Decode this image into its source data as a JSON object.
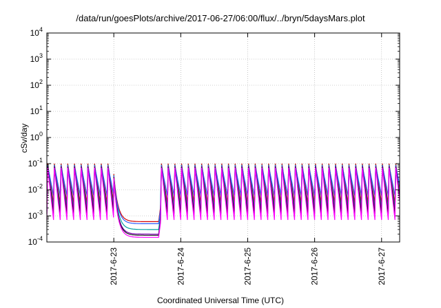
{
  "chart_data": {
    "type": "line",
    "title": "/data/run/goesPlots/archive/2017-06-27/06:00/flux/../bryn/5daysMars.plot",
    "xlabel": "Coordinated Universal Time (UTC)",
    "ylabel": "cSv/day",
    "y_scale": "log",
    "ylim": [
      0.0001,
      10000
    ],
    "y_ticks": [
      {
        "value": 0.0001,
        "base": "10",
        "exp": "-4"
      },
      {
        "value": 0.001,
        "base": "10",
        "exp": "-3"
      },
      {
        "value": 0.01,
        "base": "10",
        "exp": "-2"
      },
      {
        "value": 0.1,
        "base": "10",
        "exp": "-1"
      },
      {
        "value": 1,
        "base": "10",
        "exp": "0"
      },
      {
        "value": 10,
        "base": "10",
        "exp": "1"
      },
      {
        "value": 100,
        "base": "10",
        "exp": "2"
      },
      {
        "value": 1000,
        "base": "10",
        "exp": "3"
      },
      {
        "value": 10000,
        "base": "10",
        "exp": "4"
      }
    ],
    "xlim": [
      -1.0,
      4.27
    ],
    "x_ticks": [
      {
        "value": 0,
        "label": "2017-6-23"
      },
      {
        "value": 1,
        "label": "2017-6-24"
      },
      {
        "value": 2,
        "label": "2017-6-25"
      },
      {
        "value": 3,
        "label": "2017-6-26"
      },
      {
        "value": 4,
        "label": "2017-6-27"
      }
    ],
    "grid": true,
    "legend": "none",
    "sawtooth_period_days": 0.1,
    "dip_start_day": 0.0,
    "dip_end_day": 0.7,
    "series": [
      {
        "color": "#d40000",
        "peak": 0.1,
        "trough": 0.003,
        "dip_floor": 0.0006
      },
      {
        "color": "#00a0a0",
        "peak": 0.09,
        "trough": 0.002,
        "dip_floor": 0.0003
      },
      {
        "color": "#2f5fff",
        "peak": 0.085,
        "trough": 0.006,
        "dip_floor": 0.0005
      },
      {
        "color": "#7a00b0",
        "peak": 0.08,
        "trough": 0.0015,
        "dip_floor": 0.0002
      },
      {
        "color": "#1a1a1a",
        "peak": 0.075,
        "trough": 0.0012,
        "dip_floor": 0.00018
      },
      {
        "color": "#ff00ff",
        "peak": 0.07,
        "trough": 0.0007,
        "dip_floor": 0.00015
      }
    ]
  }
}
